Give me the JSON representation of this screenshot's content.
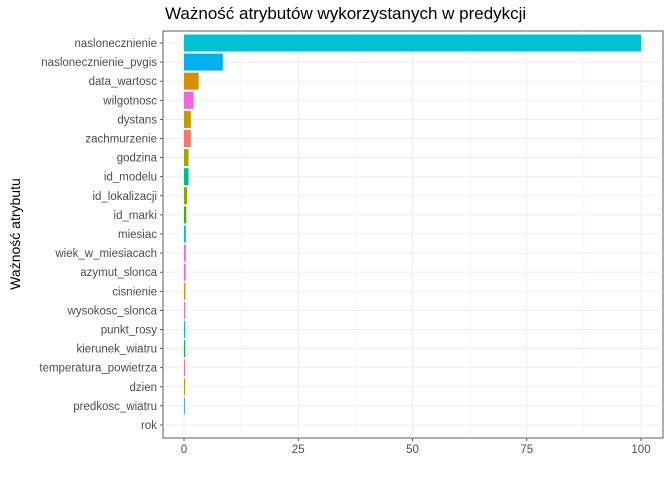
{
  "chart_data": {
    "type": "bar",
    "orientation": "horizontal",
    "title": "Ważność atrybutów wykorzystanych w predykcji",
    "xlabel": "",
    "ylabel": "Ważność atrybutu",
    "xlim": [
      0,
      100
    ],
    "x_ticks": [
      "0",
      "25",
      "50",
      "75",
      "100"
    ],
    "grid": true,
    "legend": "none",
    "categories": [
      "naslonecznienie",
      "naslonecznienie_pvgis",
      "data_wartosc",
      "wilgotnosc",
      "dystans",
      "zachmurzenie",
      "godzina",
      "id_modelu",
      "id_lokalizacji",
      "id_marki",
      "miesiac",
      "wiek_w_miesiacach",
      "azymut_slonca",
      "cisnienie",
      "wysokosc_slonca",
      "punkt_rosy",
      "kierunek_wiatru",
      "temperatura_powietrza",
      "dzien",
      "predkosc_wiatru",
      "rok"
    ],
    "values": [
      100,
      8.5,
      3.2,
      2.1,
      1.5,
      1.5,
      1.0,
      1.0,
      0.7,
      0.5,
      0.4,
      0.4,
      0.35,
      0.3,
      0.25,
      0.2,
      0.2,
      0.15,
      0.15,
      0.1,
      0
    ],
    "colors": [
      "#00C1D5",
      "#00B3F0",
      "#D89000",
      "#F066E0",
      "#C89A00",
      "#F8766D",
      "#A3A500",
      "#00BF7D",
      "#7CAE00",
      "#39B600",
      "#00BFC4",
      "#E76BF3",
      "#FB61D7",
      "#D39200",
      "#FF6C91",
      "#00BCD8",
      "#00BA38",
      "#EC69EF",
      "#BB9D00",
      "#619CFF",
      "#999999"
    ]
  }
}
